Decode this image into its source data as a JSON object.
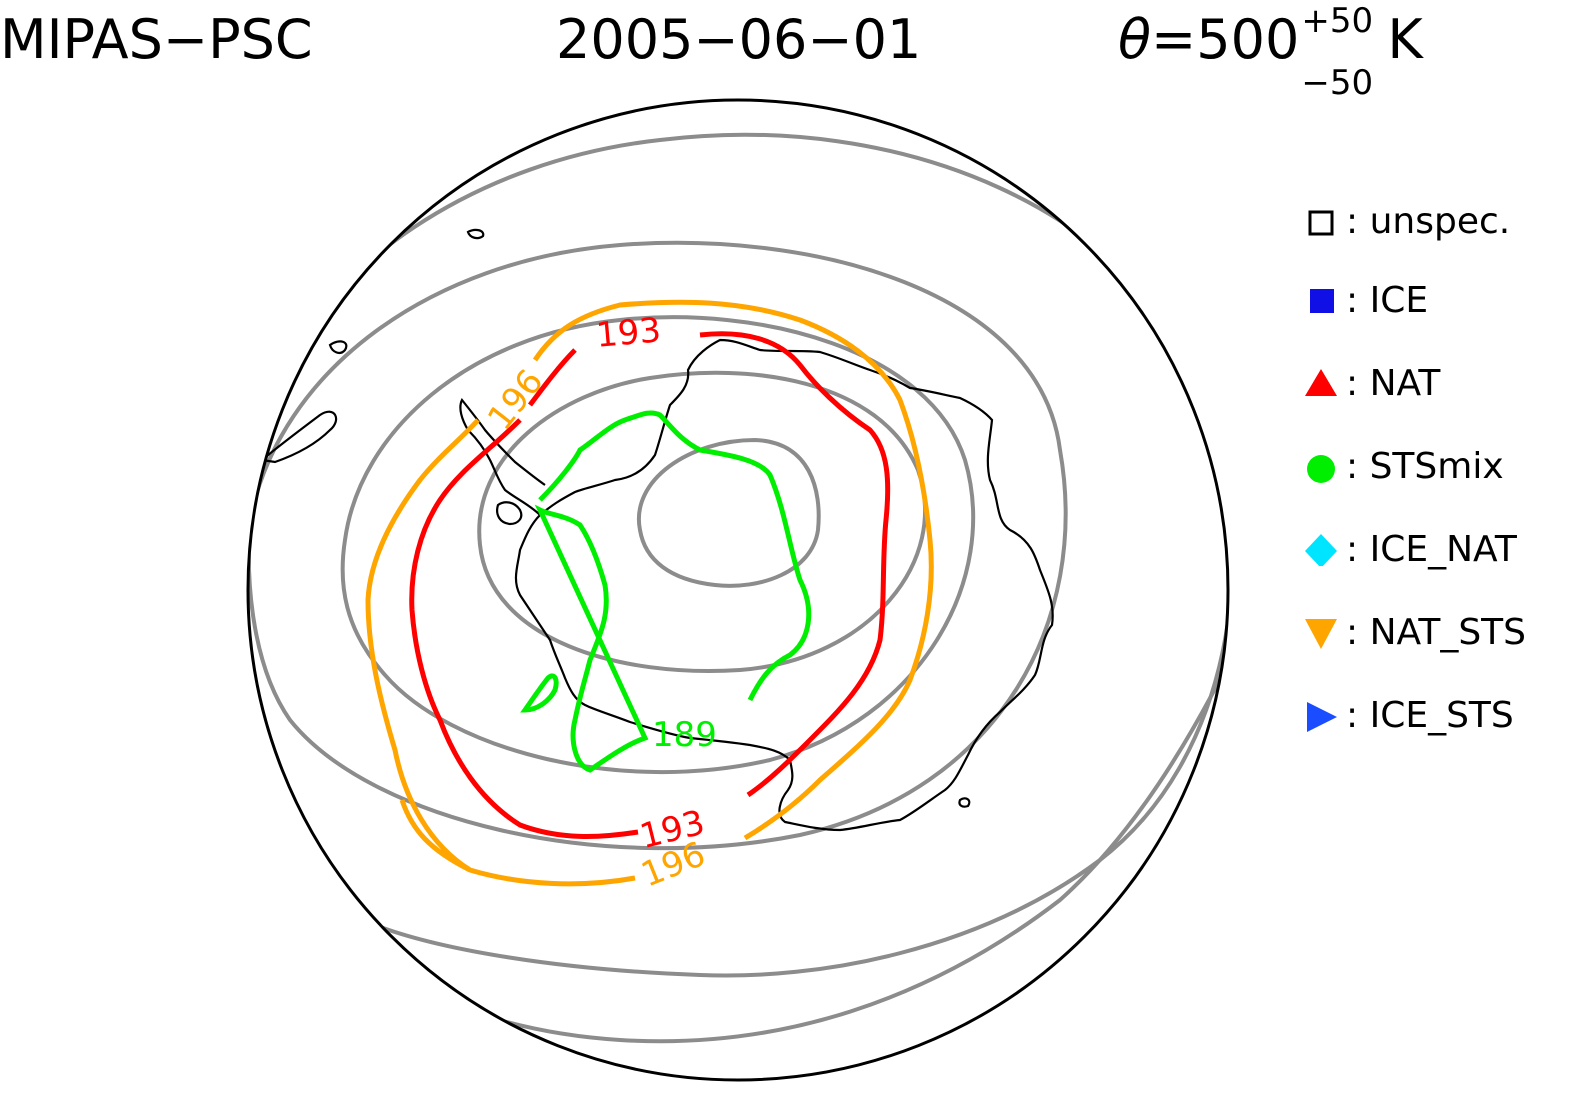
{
  "title": {
    "instrument": "MIPAS−PSC",
    "date": "2005−06−01",
    "theta_symbol": "θ",
    "theta_value": "=500",
    "theta_plus": "+50",
    "theta_minus": "−50",
    "theta_unit": "K"
  },
  "legend": {
    "items": [
      {
        "marker": "square-open-icon",
        "label": "unspec.",
        "color": "#000000"
      },
      {
        "marker": "square-filled-icon",
        "label": "ICE",
        "color": "#1010e6"
      },
      {
        "marker": "triangle-up-icon",
        "label": "NAT",
        "color": "#ff0000"
      },
      {
        "marker": "circle-icon",
        "label": "STSmix",
        "color": "#00ee00"
      },
      {
        "marker": "diamond-icon",
        "label": "ICE_NAT",
        "color": "#00e5ff"
      },
      {
        "marker": "triangle-down-icon",
        "label": "NAT_STS",
        "color": "#ffa500"
      },
      {
        "marker": "triangle-right-icon",
        "label": "ICE_STS",
        "color": "#1a4dff"
      }
    ]
  },
  "contours": {
    "labels": [
      {
        "text": "193",
        "color": "#ff0000"
      },
      {
        "text": "193",
        "color": "#ff0000"
      },
      {
        "text": "196",
        "color": "#ffa500"
      },
      {
        "text": "196",
        "color": "#ffa500"
      },
      {
        "text": "189",
        "color": "#00ee00"
      }
    ],
    "colors": {
      "background_isotherms": "#8c8c8c",
      "isotherm_189": "#00ee00",
      "isotherm_193": "#ff0000",
      "isotherm_196": "#ffa500",
      "coastline": "#000000"
    }
  }
}
